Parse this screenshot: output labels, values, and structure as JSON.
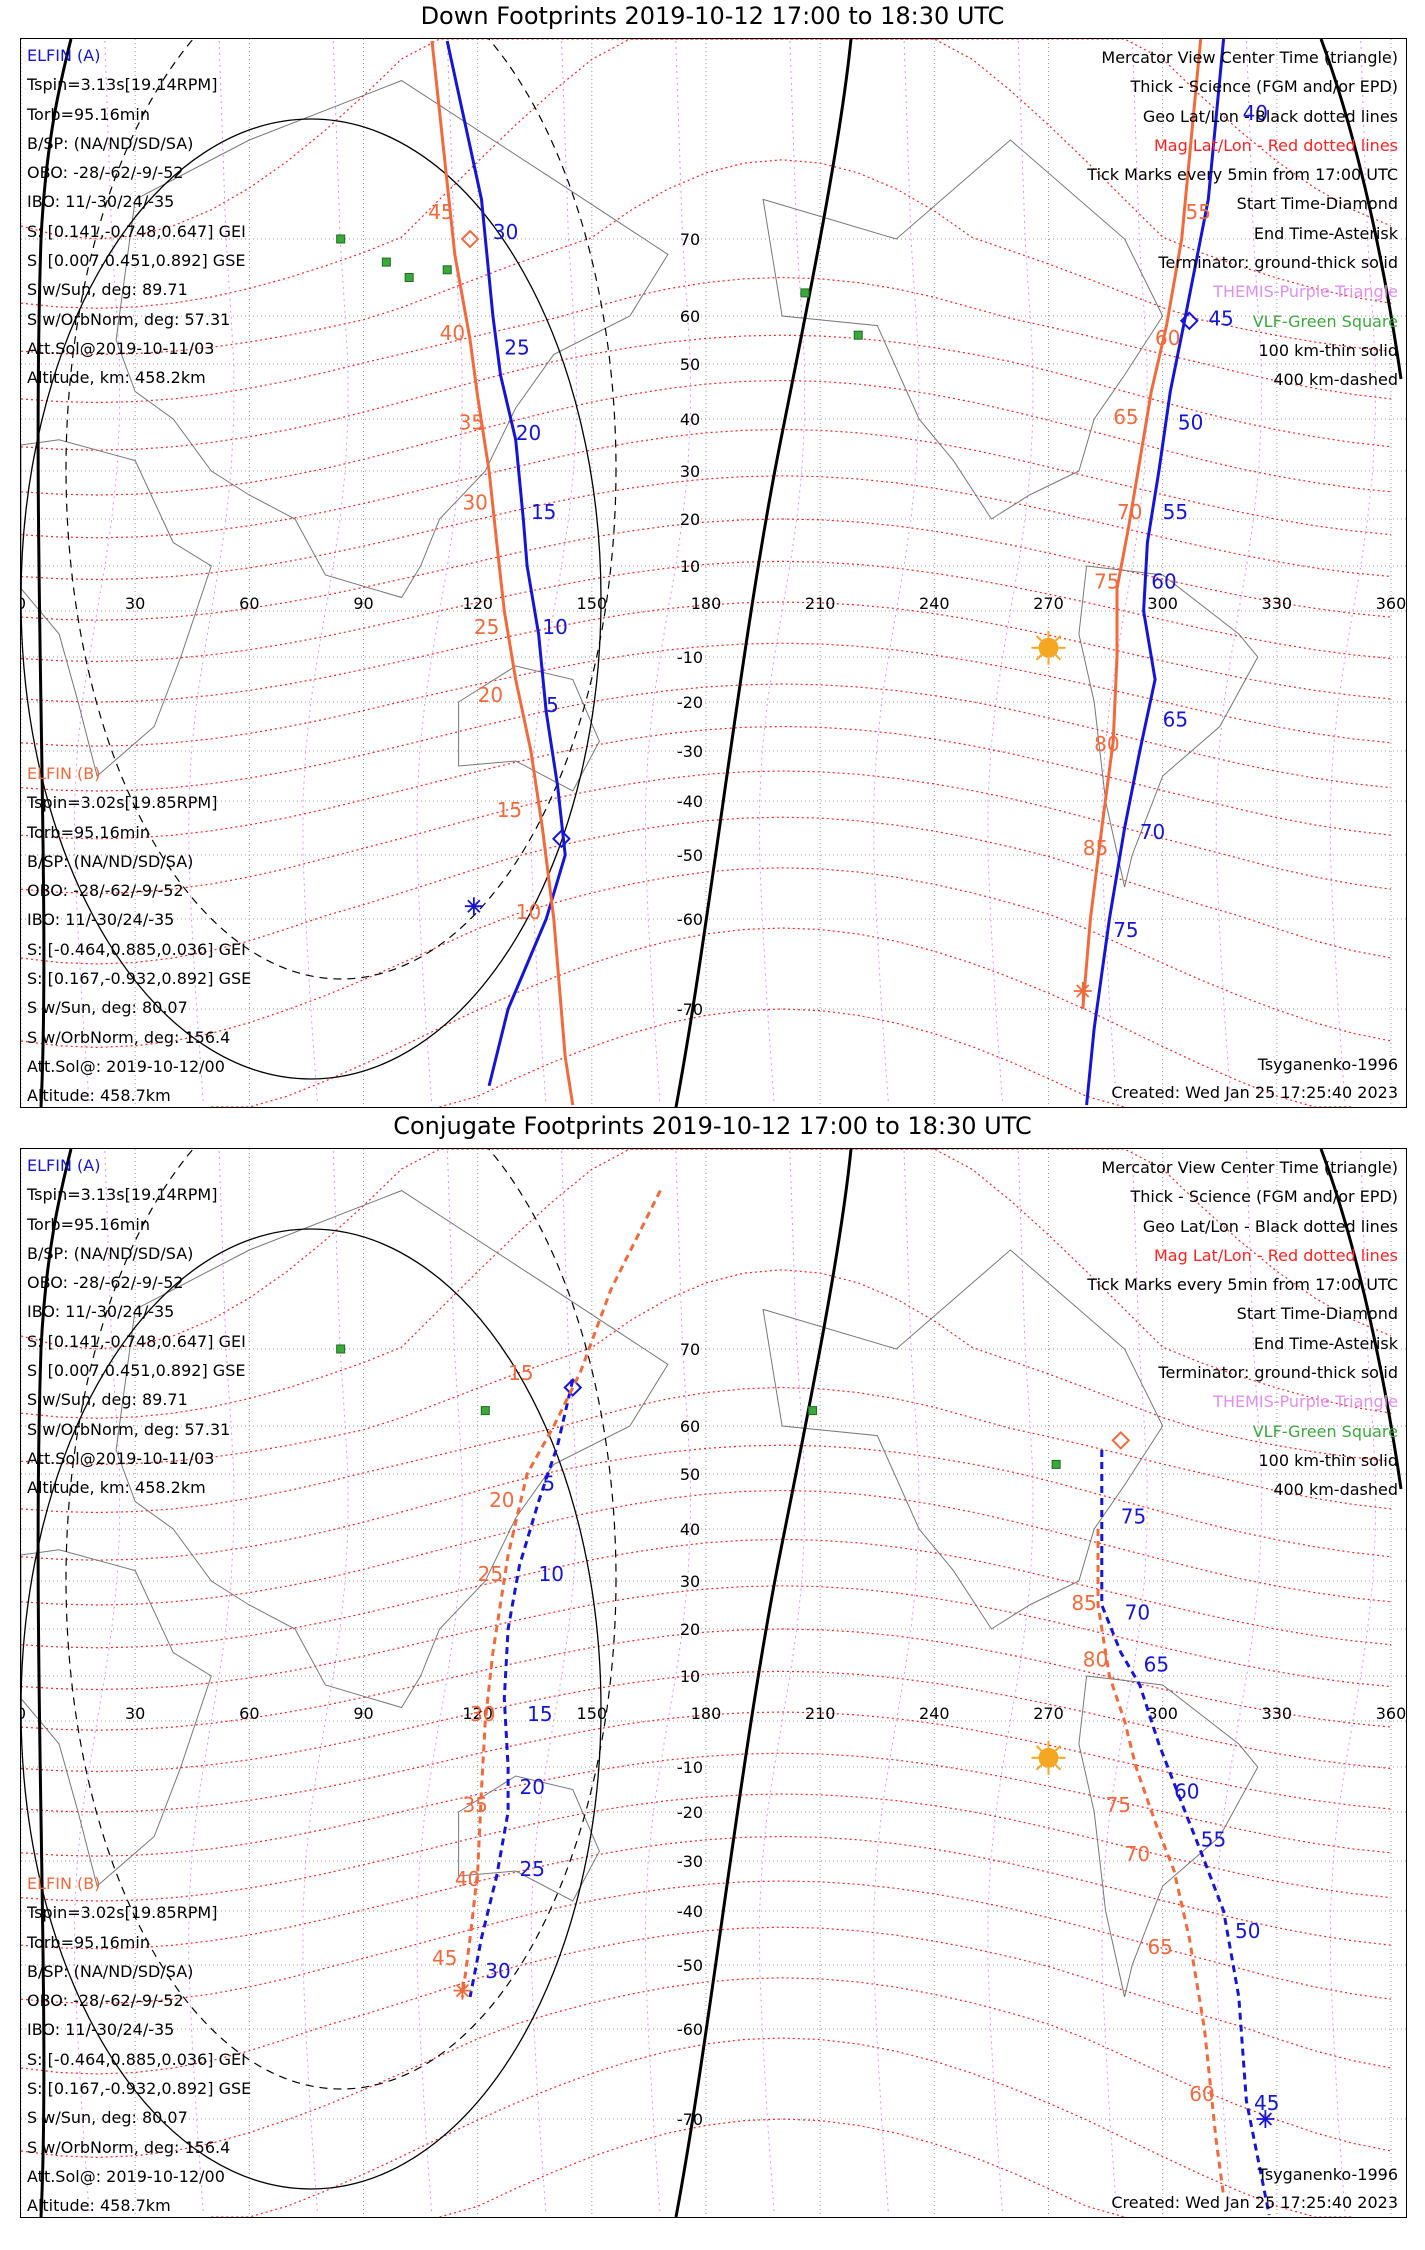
{
  "titles": [
    "Down Footprints 2019-10-12 17:00 to 18:30 UTC",
    "Conjugate Footprints 2019-10-12 17:00 to 18:30 UTC"
  ],
  "info_a": {
    "head": "ELFIN (A)",
    "lines": [
      "Tspin=3.13s[19.14RPM]",
      "Torb=95.16min",
      "B/SP: (NA/ND/SD/SA)",
      "OBO: -28/-62/-9/-52",
      "IBO: 11/-30/24/-35",
      "S: [0.141,-0.748,0.647] GEI",
      "S: [0.007,0.451,0.892] GSE",
      "S w/Sun, deg: 89.71",
      "S w/OrbNorm, deg: 57.31",
      "Att.Sol@2019-10-11/03",
      "Altitude, km: 458.2km"
    ]
  },
  "info_b": {
    "head": "ELFIN (B)",
    "lines": [
      "Tspin=3.02s[19.85RPM]",
      "Torb=95.16min",
      "B/SP: (NA/ND/SD/SA)",
      "OBO: -28/-62/-9/-52",
      "IBO: 11/-30/24/-35",
      "S: [-0.464,0.885,0.036] GEI",
      "S: [0.167,-0.932,0.892] GSE",
      "S w/Sun, deg: 80.07",
      "S w/OrbNorm, deg: 156.4",
      "Att.Sol@: 2019-10-12/00",
      "Altitude: 458.7km"
    ]
  },
  "legend": {
    "mercator": "Mercator View Center Time (triangle)",
    "thick": "Thick - Science (FGM and/or EPD)",
    "geo": "Geo Lat/Lon - Black dotted lines",
    "mag": "Mag Lat/Lon - Red dotted lines",
    "ticks": "Tick Marks every 5min from 17:00 UTC",
    "start": "Start Time-Diamond",
    "end": "End Time-Asterisk",
    "terminator": "Terminator: ground-thick solid",
    "themis": "THEMIS-Purple Triangle",
    "vlf": "VLF-Green Square",
    "km100": "100 km-thin solid",
    "km400": "400 km-dashed"
  },
  "footer": {
    "model": "Tsyganenko-1996",
    "created": "Created: Wed Jan 25 17:25:40 2023"
  },
  "colors": {
    "elfin_a": "#1515d8",
    "elfin_b": "#f26a3c",
    "mag_grid": "#ff2020",
    "geo_grid": "#555555",
    "themis": "#e08ef0",
    "vlf": "#3aa83a",
    "sun": "#f5a623"
  },
  "chart_data": [
    {
      "type": "map",
      "title": "Down Footprints 2019-10-12 17:00 to 18:30 UTC",
      "projection": "mercator",
      "lon_range": [
        0,
        360
      ],
      "lat_range": [
        -80,
        80
      ],
      "lon_ticks": [
        0,
        30,
        60,
        90,
        120,
        150,
        180,
        210,
        240,
        270,
        300,
        330,
        360
      ],
      "lat_ticks": [
        70,
        60,
        50,
        40,
        30,
        20,
        10,
        -10,
        -20,
        -30,
        -40,
        -50,
        -60,
        -70
      ],
      "sun": {
        "lon": 270,
        "lat": -8
      },
      "series": [
        {
          "name": "ELFIN (A)",
          "style": "solid",
          "points": [
            [
              112,
              80
            ],
            [
              121,
              72
            ],
            [
              124,
              60
            ],
            [
              126,
              48
            ],
            [
              130,
              36
            ],
            [
              132,
              20
            ],
            [
              133,
              10
            ],
            [
              136,
              -5
            ],
            [
              138,
              -22
            ],
            [
              141,
              -37
            ],
            [
              143,
              -50
            ],
            [
              138,
              -60
            ],
            [
              128,
              -70
            ],
            [
              123,
              -78
            ]
          ],
          "tick_labels": [
            {
              "label": "30",
              "lon": 124,
              "lat": 70
            },
            {
              "label": "25",
              "lon": 127,
              "lat": 52
            },
            {
              "label": "20",
              "lon": 130,
              "lat": 36
            },
            {
              "label": "15",
              "lon": 134,
              "lat": 20
            },
            {
              "label": "10",
              "lon": 137,
              "lat": -5
            },
            {
              "label": "5",
              "lon": 138,
              "lat": -22
            }
          ],
          "start": {
            "lon": 142,
            "lat": -47
          },
          "end": {
            "lon": 119,
            "lat": -58
          }
        },
        {
          "name": "ELFIN (B)",
          "style": "solid",
          "points": [
            [
              108,
              80
            ],
            [
              114,
              68
            ],
            [
              118,
              55
            ],
            [
              120,
              44
            ],
            [
              123,
              30
            ],
            [
              125,
              15
            ],
            [
              127,
              0
            ],
            [
              130,
              -15
            ],
            [
              134,
              -30
            ],
            [
              137,
              -45
            ],
            [
              140,
              -60
            ],
            [
              143,
              -75
            ],
            [
              145,
              -80
            ]
          ],
          "tick_labels": [
            {
              "label": "45",
              "lon": 107,
              "lat": 71
            },
            {
              "label": "40",
              "lon": 110,
              "lat": 55
            },
            {
              "label": "35",
              "lon": 115,
              "lat": 38
            },
            {
              "label": "30",
              "lon": 116,
              "lat": 22
            },
            {
              "label": "25",
              "lon": 119,
              "lat": -5
            },
            {
              "label": "20",
              "lon": 120,
              "lat": -20
            },
            {
              "label": "15",
              "lon": 125,
              "lat": -43
            },
            {
              "label": "10",
              "lon": 130,
              "lat": -60
            }
          ],
          "start": {
            "lon": 118,
            "lat": 70
          }
        },
        {
          "name": "ELFIN (A) east",
          "style": "solid",
          "points": [
            [
              316,
              82
            ],
            [
              312,
              72
            ],
            [
              306,
              60
            ],
            [
              302,
              45
            ],
            [
              299,
              30
            ],
            [
              296,
              15
            ],
            [
              295,
              0
            ],
            [
              298,
              -15
            ],
            [
              294,
              -30
            ],
            [
              290,
              -45
            ],
            [
              286,
              -60
            ],
            [
              282,
              -72
            ],
            [
              280,
              -80
            ]
          ],
          "tick_labels": [
            {
              "label": "40",
              "lon": 321,
              "lat": 76
            },
            {
              "label": "45",
              "lon": 312,
              "lat": 58
            },
            {
              "label": "50",
              "lon": 304,
              "lat": 38
            },
            {
              "label": "55",
              "lon": 300,
              "lat": 20
            },
            {
              "label": "60",
              "lon": 297,
              "lat": 5
            },
            {
              "label": "65",
              "lon": 300,
              "lat": -25
            },
            {
              "label": "70",
              "lon": 294,
              "lat": -47
            },
            {
              "label": "75",
              "lon": 287,
              "lat": -62
            }
          ],
          "start": {
            "lon": 307,
            "lat": 59
          }
        },
        {
          "name": "ELFIN (B) east",
          "style": "solid",
          "points": [
            [
              310,
              82
            ],
            [
              305,
              70
            ],
            [
              301,
              58
            ],
            [
              297,
              45
            ],
            [
              294,
              32
            ],
            [
              291,
              18
            ],
            [
              288,
              5
            ],
            [
              288,
              -10
            ],
            [
              287,
              -28
            ],
            [
              284,
              -45
            ],
            [
              281,
              -60
            ],
            [
              279,
              -70
            ]
          ],
          "tick_labels": [
            {
              "label": "55",
              "lon": 306,
              "lat": 71
            },
            {
              "label": "60",
              "lon": 298,
              "lat": 54
            },
            {
              "label": "65",
              "lon": 287,
              "lat": 39
            },
            {
              "label": "70",
              "lon": 288,
              "lat": 20
            },
            {
              "label": "75",
              "lon": 282,
              "lat": 5
            },
            {
              "label": "80",
              "lon": 282,
              "lat": -30
            },
            {
              "label": "85",
              "lon": 279,
              "lat": -50
            }
          ],
          "end": {
            "lon": 279,
            "lat": -68
          }
        }
      ],
      "vlf_squares": [
        [
          84,
          70
        ],
        [
          96,
          67
        ],
        [
          102,
          65
        ],
        [
          112,
          66
        ],
        [
          206,
          63
        ],
        [
          220,
          56
        ]
      ]
    },
    {
      "type": "map",
      "title": "Conjugate Footprints 2019-10-12 17:00 to 18:30 UTC",
      "projection": "mercator",
      "lon_range": [
        0,
        360
      ],
      "lat_range": [
        -80,
        80
      ],
      "lon_ticks": [
        0,
        30,
        60,
        90,
        120,
        150,
        180,
        210,
        240,
        270,
        300,
        330,
        360
      ],
      "lat_ticks": [
        70,
        60,
        50,
        40,
        30,
        20,
        10,
        -10,
        -20,
        -30,
        -40,
        -50,
        -60,
        -70
      ],
      "sun": {
        "lon": 270,
        "lat": -8
      },
      "series": [
        {
          "name": "ELFIN (A)",
          "style": "dashed",
          "points": [
            [
              145,
              66
            ],
            [
              141,
              56
            ],
            [
              136,
              45
            ],
            [
              131,
              33
            ],
            [
              128,
              20
            ],
            [
              127,
              5
            ],
            [
              128,
              -10
            ],
            [
              128,
              -20
            ],
            [
              125,
              -33
            ],
            [
              121,
              -45
            ],
            [
              118,
              -55
            ]
          ],
          "tick_labels": [
            {
              "label": "5",
              "lon": 137,
              "lat": 47
            },
            {
              "label": "10",
              "lon": 136,
              "lat": 30
            },
            {
              "label": "15",
              "lon": 133,
              "lat": 0
            },
            {
              "label": "20",
              "lon": 131,
              "lat": -16
            },
            {
              "label": "25",
              "lon": 131,
              "lat": -33
            },
            {
              "label": "30",
              "lon": 122,
              "lat": -52
            }
          ],
          "start": {
            "lon": 145,
            "lat": 65
          }
        },
        {
          "name": "ELFIN (B)",
          "style": "dashed",
          "points": [
            [
              168,
              78
            ],
            [
              155,
              73
            ],
            [
              147,
              67
            ],
            [
              140,
              60
            ],
            [
              133,
              50
            ],
            [
              128,
              35
            ],
            [
              124,
              15
            ],
            [
              122,
              0
            ],
            [
              121,
              -15
            ],
            [
              120,
              -32
            ],
            [
              118,
              -45
            ],
            [
              116,
              -55
            ]
          ],
          "tick_labels": [
            {
              "label": "15",
              "lon": 128,
              "lat": 66
            },
            {
              "label": "20",
              "lon": 123,
              "lat": 44
            },
            {
              "label": "25",
              "lon": 120,
              "lat": 30
            },
            {
              "label": "30",
              "lon": 118,
              "lat": 0
            },
            {
              "label": "35",
              "lon": 116,
              "lat": -20
            },
            {
              "label": "40",
              "lon": 114,
              "lat": -35
            },
            {
              "label": "45",
              "lon": 108,
              "lat": -50
            }
          ],
          "end": {
            "lon": 116,
            "lat": -54
          }
        },
        {
          "name": "ELFIN (A) east",
          "style": "dashed",
          "points": [
            [
              284,
              55
            ],
            [
              284,
              40
            ],
            [
              284,
              25
            ],
            [
              289,
              15
            ],
            [
              294,
              8
            ],
            [
              299,
              -5
            ],
            [
              305,
              -18
            ],
            [
              310,
              -28
            ],
            [
              316,
              -40
            ],
            [
              320,
              -55
            ],
            [
              322,
              -68
            ],
            [
              328,
              -80
            ]
          ],
          "tick_labels": [
            {
              "label": "75",
              "lon": 289,
              "lat": 41
            },
            {
              "label": "70",
              "lon": 290,
              "lat": 22
            },
            {
              "label": "65",
              "lon": 295,
              "lat": 11
            },
            {
              "label": "60",
              "lon": 303,
              "lat": -17
            },
            {
              "label": "55",
              "lon": 310,
              "lat": -27
            },
            {
              "label": "50",
              "lon": 319,
              "lat": -45
            },
            {
              "label": "45",
              "lon": 324,
              "lat": -69
            }
          ],
          "end": {
            "lon": 327,
            "lat": -70
          }
        },
        {
          "name": "ELFIN (B) east",
          "style": "dashed",
          "points": [
            [
              283,
              40
            ],
            [
              283,
              25
            ],
            [
              286,
              10
            ],
            [
              290,
              0
            ],
            [
              293,
              -10
            ],
            [
              298,
              -22
            ],
            [
              303,
              -32
            ],
            [
              307,
              -45
            ],
            [
              311,
              -60
            ],
            [
              314,
              -72
            ],
            [
              316,
              -78
            ]
          ],
          "tick_labels": [
            {
              "label": "85",
              "lon": 276,
              "lat": 24
            },
            {
              "label": "80",
              "lon": 279,
              "lat": 12
            },
            {
              "label": "75",
              "lon": 285,
              "lat": -20
            },
            {
              "label": "70",
              "lon": 290,
              "lat": -30
            },
            {
              "label": "65",
              "lon": 296,
              "lat": -48
            },
            {
              "label": "60",
              "lon": 307,
              "lat": -68
            }
          ],
          "start": {
            "lon": 289,
            "lat": 57
          }
        }
      ],
      "vlf_squares": [
        [
          84,
          70
        ],
        [
          122,
          62
        ],
        [
          208,
          62
        ],
        [
          272,
          52
        ]
      ]
    }
  ]
}
